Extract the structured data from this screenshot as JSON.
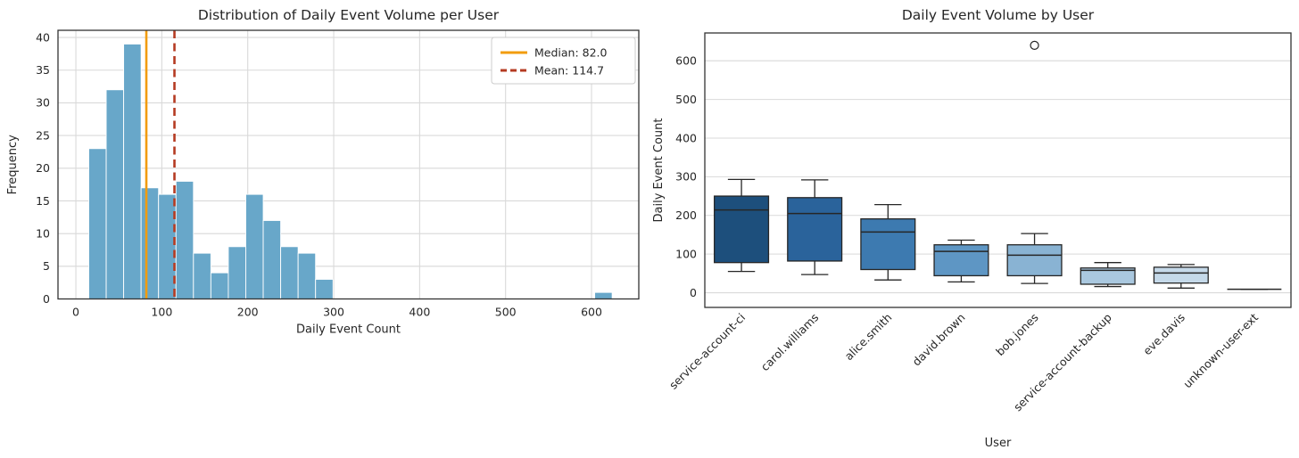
{
  "figure": {
    "background": "#ffffff",
    "text_color": "#262626",
    "grid_color": "#d9d9d9",
    "spine_color": "#333333"
  },
  "chart_data": [
    {
      "type": "bar",
      "subtype": "histogram",
      "title": "Distribution of Daily Event Volume per User",
      "xlabel": "Daily Event Count",
      "ylabel": "Frequency",
      "xlim": [
        -20.8,
        655
      ],
      "ylim": [
        0,
        41.1
      ],
      "xticks": [
        0,
        100,
        200,
        300,
        400,
        500,
        600
      ],
      "yticks": [
        0,
        5,
        10,
        15,
        20,
        25,
        30,
        35,
        40
      ],
      "grid": "both",
      "bar_color": "#68a7c9",
      "bar_edge_color": "#ffffff",
      "bin_start": 15,
      "bin_width": 20.3,
      "bin_counts": [
        23,
        32,
        39,
        17,
        16,
        18,
        7,
        4,
        8,
        16,
        12,
        8,
        7,
        3
      ],
      "outlier_bin": {
        "start": 603.7,
        "count": 1
      },
      "median_line": {
        "value": 82.0,
        "label": "Median: 82.0",
        "color": "#f29c0e",
        "style": "solid"
      },
      "mean_line": {
        "value": 114.7,
        "label": "Mean: 114.7",
        "color": "#b53b22",
        "style": "dashed"
      },
      "legend_position": "upper right"
    },
    {
      "type": "boxplot",
      "title": "Daily Event Volume by User",
      "xlabel": "User",
      "ylabel": "Daily Event Count",
      "ylim": [
        -38,
        672
      ],
      "yticks": [
        0,
        100,
        200,
        300,
        400,
        500,
        600
      ],
      "grid": "horizontal",
      "box_edge_color": "#262626",
      "series": [
        {
          "name": "service-account-ci",
          "min": 55,
          "q1": 78,
          "median": 214,
          "q3": 250,
          "max": 293,
          "outliers": [],
          "color": "#1d4f7c"
        },
        {
          "name": "carol.williams",
          "min": 47,
          "q1": 82,
          "median": 205,
          "q3": 246,
          "max": 292,
          "outliers": [],
          "color": "#2a639b"
        },
        {
          "name": "alice.smith",
          "min": 33,
          "q1": 60,
          "median": 157,
          "q3": 191,
          "max": 228,
          "outliers": [],
          "color": "#3d7ab0"
        },
        {
          "name": "david.brown",
          "min": 28,
          "q1": 44,
          "median": 107,
          "q3": 124,
          "max": 136,
          "outliers": [],
          "color": "#5e96c4"
        },
        {
          "name": "bob.jones",
          "min": 24,
          "q1": 44,
          "median": 97,
          "q3": 124,
          "max": 153,
          "outliers": [
            640
          ],
          "color": "#89b3d3"
        },
        {
          "name": "service-account-backup",
          "min": 16,
          "q1": 22,
          "median": 58,
          "q3": 64,
          "max": 78,
          "outliers": [],
          "color": "#aac8df"
        },
        {
          "name": "eve.davis",
          "min": 12,
          "q1": 25,
          "median": 51,
          "q3": 66,
          "max": 73,
          "outliers": [],
          "color": "#c5d9e9"
        },
        {
          "name": "unknown-user-ext",
          "min": 9,
          "q1": 9,
          "median": 9,
          "q3": 9,
          "max": 9,
          "outliers": [],
          "color": "#dde9f3"
        }
      ]
    }
  ]
}
